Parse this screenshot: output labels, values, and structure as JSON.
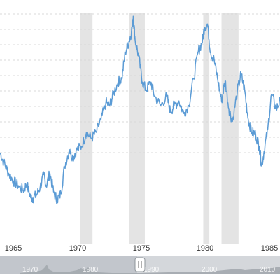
{
  "chart_data": {
    "type": "line",
    "title": "",
    "xlabel": "",
    "ylabel": "",
    "xlim": [
      1963.3,
      1986.3
    ],
    "x_ticks": [
      "1965",
      "1970",
      "1975",
      "1980",
      "1985"
    ],
    "grid": "horizontal dashed",
    "series": [
      {
        "color": "#5b9bd5",
        "x": [
          1963.3,
          1963.6,
          1964.0,
          1964.4,
          1964.8,
          1965.2,
          1965.5,
          1965.8,
          1966.0,
          1966.3,
          1966.6,
          1966.9,
          1967.1,
          1967.4,
          1967.7,
          1968.0,
          1968.3,
          1968.6,
          1969.0,
          1969.3,
          1969.6,
          1970.0,
          1970.4,
          1970.8,
          1971.2,
          1971.6,
          1972.0,
          1972.3,
          1972.6,
          1973.0,
          1973.3,
          1973.6,
          1973.9,
          1974.1,
          1974.25,
          1974.4,
          1974.7,
          1975.0,
          1975.3,
          1975.7,
          1976.0,
          1976.5,
          1977.0,
          1977.3,
          1977.6,
          1978.0,
          1978.4,
          1978.8,
          1979.2,
          1979.6,
          1979.9,
          1980.1,
          1980.35,
          1980.6,
          1980.9,
          1981.2,
          1981.5,
          1981.8,
          1982.1,
          1982.4,
          1982.8,
          1983.1,
          1983.4,
          1983.7,
          1984.0,
          1984.3,
          1984.6,
          1984.8,
          1985.0,
          1985.3,
          1985.6,
          1986.0,
          1986.3
        ],
        "y": [
          58,
          52,
          45,
          40,
          37,
          34,
          38,
          30,
          29,
          31,
          36,
          44,
          37,
          45,
          33,
          28,
          32,
          49,
          60,
          55,
          60,
          62,
          71,
          67,
          71,
          79,
          90,
          88,
          95,
          103,
          105,
          122,
          129,
          135,
          145,
          130,
          119,
          103,
          98,
          103,
          94,
          88,
          94,
          84,
          88,
          91,
          83,
          88,
          105,
          123,
          128,
          138,
          140,
          122,
          117,
          104,
          91,
          104,
          86,
          78,
          97,
          108,
          98,
          79,
          71,
          70,
          62,
          50,
          59,
          73,
          95,
          86,
          91
        ]
      }
    ],
    "recession_bands": [
      [
        1969.9,
        1970.9
      ],
      [
        1973.9,
        1975.2
      ],
      [
        1980.0,
        1980.5
      ],
      [
        1981.5,
        1982.9
      ]
    ]
  },
  "navigator": {
    "labels": [
      "1970",
      "1980",
      "1990",
      "2000",
      "2010"
    ],
    "handle_icon": "pause-grip-icon"
  }
}
